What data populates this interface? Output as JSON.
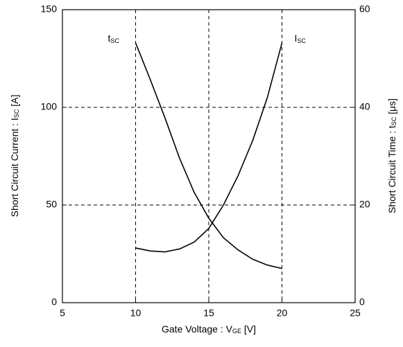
{
  "chart_data": {
    "type": "line",
    "xlabel": {
      "main": "Gate Voltage  :  V",
      "sub": "GE",
      "unit": "  [V]"
    },
    "ylabel": {
      "main": "Short Circuit Current : I",
      "sub": "SC",
      "unit": " [A]"
    },
    "y2label": {
      "main": "Short Circuit Time : t",
      "sub": "SC",
      "unit": " [μs]"
    },
    "x": [
      10,
      11,
      12,
      13,
      14,
      15,
      16,
      17,
      18,
      19,
      20
    ],
    "series": [
      {
        "name": "t",
        "name_sub": "SC",
        "color": "#000000",
        "axis": "y2",
        "values": [
          53.2,
          45.7,
          37.9,
          29.6,
          22.6,
          17.3,
          13.3,
          10.8,
          8.9,
          7.7,
          7.0
        ]
      },
      {
        "name": "I",
        "name_sub": "SC",
        "color": "#000000",
        "axis": "y",
        "values": [
          28,
          26.5,
          26,
          27.5,
          31,
          38,
          50,
          65,
          83,
          105,
          133
        ]
      }
    ],
    "xlim": [
      5,
      25
    ],
    "xticks": [
      5,
      10,
      15,
      20,
      25
    ],
    "ylim": [
      0,
      150
    ],
    "yticks": [
      0,
      50,
      100,
      150
    ],
    "y2lim": [
      0,
      60
    ],
    "y2ticks": [
      0,
      20,
      40,
      60
    ],
    "grid": true
  }
}
